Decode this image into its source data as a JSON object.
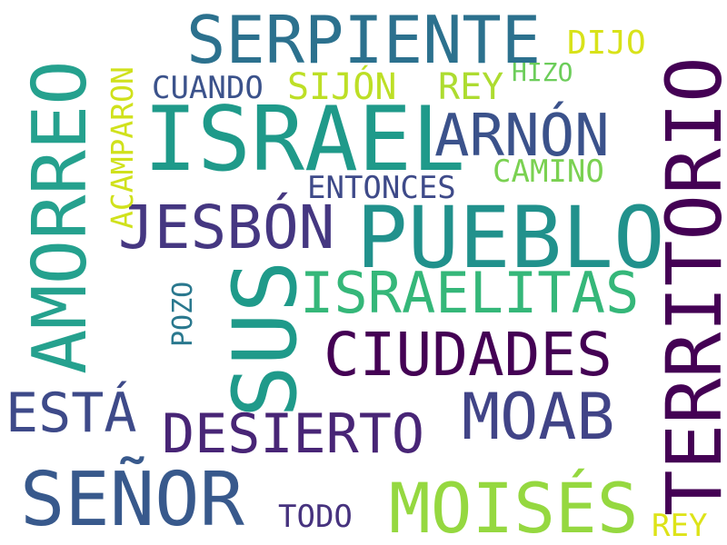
{
  "words": {
    "israel": {
      "text": "ISRAEL",
      "color": "#1f9a8a"
    },
    "pueblo": {
      "text": "PUEBLO",
      "color": "#21918c"
    },
    "territorio": {
      "text": "TERRITORIO",
      "color": "#440154"
    },
    "amorreo": {
      "text": "AMORREO",
      "color": "#25a18e"
    },
    "sus": {
      "text": "SUS",
      "color": "#1f9a8a"
    },
    "serpiente": {
      "text": "SERPIENTE",
      "color": "#2c718e"
    },
    "senor": {
      "text": "SEÑOR",
      "color": "#38598c"
    },
    "moises": {
      "text": "MOISÉS",
      "color": "#95d840"
    },
    "ciudades": {
      "text": "CIUDADES",
      "color": "#440154"
    },
    "moab": {
      "text": "MOAB",
      "color": "#414487"
    },
    "israelitas": {
      "text": "ISRAELITAS",
      "color": "#35b779"
    },
    "jesbon": {
      "text": "JESBÓN",
      "color": "#453781"
    },
    "arnon": {
      "text": "ARNÓN",
      "color": "#3b528b"
    },
    "desierto": {
      "text": "DESIERTO",
      "color": "#482576"
    },
    "esta": {
      "text": "ESTÁ",
      "color": "#3e4a89"
    },
    "sijon": {
      "text": "SIJÓN",
      "color": "#bddf26"
    },
    "rey_top": {
      "text": "REY",
      "color": "#addc30"
    },
    "cuando": {
      "text": "CUANDO",
      "color": "#3b528b"
    },
    "dijo": {
      "text": "DIJO",
      "color": "#d8e219"
    },
    "hizo": {
      "text": "HIZO",
      "color": "#6ccd5a"
    },
    "camino": {
      "text": "CAMINO",
      "color": "#7ad151"
    },
    "entonces": {
      "text": "ENTONCES",
      "color": "#3e4a89"
    },
    "acamparon": {
      "text": "ACAMPARON",
      "color": "#d0e11c"
    },
    "pozo": {
      "text": "POZO",
      "color": "#2a788e"
    },
    "todo": {
      "text": "TODO",
      "color": "#46327e"
    },
    "rey_bottom": {
      "text": "REY",
      "color": "#dde318"
    }
  }
}
